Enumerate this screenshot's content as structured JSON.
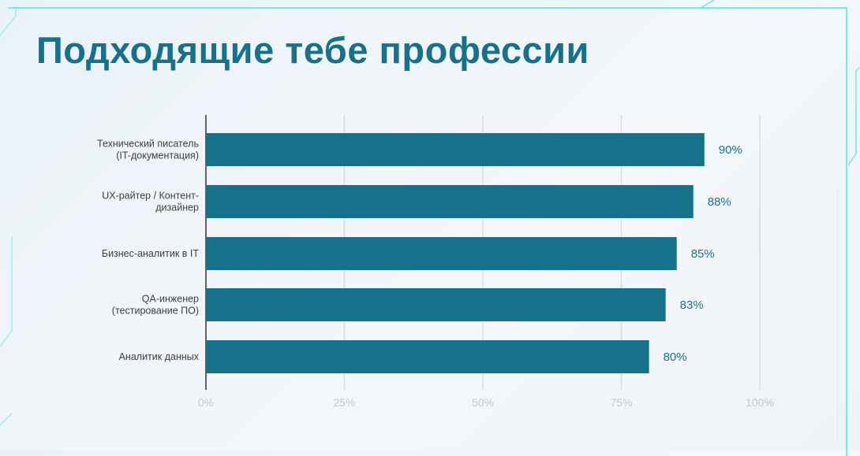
{
  "title": "Подходящие тебе профессии",
  "colors": {
    "bar": "#15728a",
    "title": "#17718a",
    "value_label": "#15728a",
    "accent_line": "#6fe8ee"
  },
  "chart_data": {
    "type": "bar",
    "orientation": "horizontal",
    "title": "Подходящие тебе профессии",
    "categories": [
      [
        "Технический писатель",
        "(IT-документация)"
      ],
      [
        "UX-райтер / Контент-",
        "дизайнер"
      ],
      [
        "Бизнес-аналитик в IT"
      ],
      [
        "QA-инженер",
        "(тестирование ПО)"
      ],
      [
        "Аналитик данных"
      ]
    ],
    "values": [
      90,
      88,
      85,
      83,
      80
    ],
    "value_labels": [
      "90%",
      "88%",
      "85%",
      "83%",
      "80%"
    ],
    "xlim": [
      0,
      100
    ],
    "xticks": [
      0,
      25,
      50,
      75,
      100
    ],
    "xtick_labels": [
      "0%",
      "25%",
      "50%",
      "75%",
      "100%"
    ],
    "grid": true,
    "legend": "none"
  }
}
